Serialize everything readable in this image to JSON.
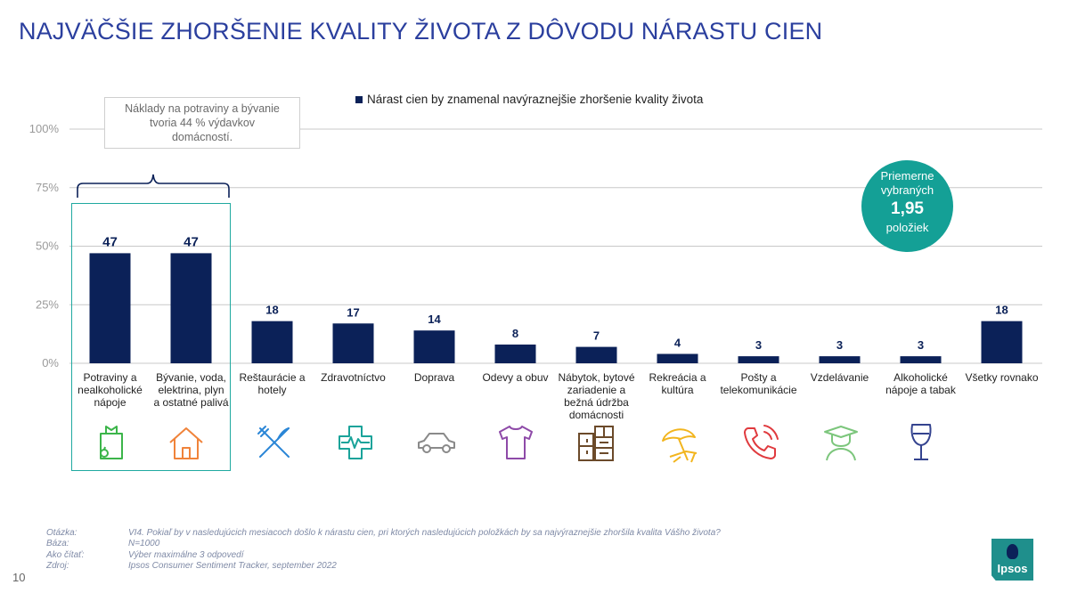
{
  "title": "NAJVÄČŠIE ZHORŠENIE KVALITY ŽIVOTA Z DÔVODU NÁRASTU CIEN",
  "callout": {
    "line1": "Náklady na potraviny a bývanie",
    "line2": "tvoria 44 % výdavkov",
    "line3": "domácností."
  },
  "avg_badge": {
    "line1": "Priemerne",
    "line2": "vybraných",
    "value": "1,95",
    "line3": "položiek"
  },
  "colors": {
    "bar": "#0b2158",
    "title": "#2b3f9e",
    "accent": "#14a096"
  },
  "icons": [
    "grocery-bag-icon",
    "house-icon",
    "fork-knife-icon",
    "medical-cross-icon",
    "car-icon",
    "tshirt-icon",
    "furniture-icon",
    "beach-umbrella-icon",
    "phone-icon",
    "graduate-icon",
    "wine-glass-icon"
  ],
  "chart_data": {
    "type": "bar",
    "title": "NAJVÄČŠIE ZHORŠENIE KVALITY ŽIVOTA Z DÔVODU NÁRASTU CIEN",
    "ylim": [
      0,
      100
    ],
    "yticks": [
      "0%",
      "25%",
      "50%",
      "75%",
      "100%"
    ],
    "yticks_values": [
      0,
      25,
      50,
      75,
      100
    ],
    "grid": true,
    "legend_position": "top",
    "categories": [
      [
        "Potraviny a",
        "nealkoholické",
        "nápoje"
      ],
      [
        "Bývanie, voda,",
        "elektrina, plyn",
        "a ostatné palivá"
      ],
      [
        "Reštaurácie a",
        "hotely"
      ],
      [
        "Zdravotníctvo"
      ],
      [
        "Doprava"
      ],
      [
        "Odevy a obuv"
      ],
      [
        "Nábytok, bytové",
        "zariadenie a",
        "bežná údržba",
        "domácnosti"
      ],
      [
        "Rekreácia a",
        "kultúra"
      ],
      [
        "Pošty a",
        "telekomunikácie"
      ],
      [
        "Vzdelávanie"
      ],
      [
        "Alkoholické",
        "nápoje a tabak"
      ],
      [
        "Všetky rovnako"
      ]
    ],
    "series": [
      {
        "name": "Nárast cien by znamenal navýraznejšie zhoršenie kvality života",
        "values": [
          47,
          47,
          18,
          17,
          14,
          8,
          7,
          4,
          3,
          3,
          3,
          18
        ]
      }
    ]
  },
  "footer": [
    {
      "label": "Otázka:",
      "text": "VI4. Pokiaľ by v nasledujúcich mesiacoch došlo k nárastu cien, pri ktorých nasledujúcich položkách by sa najvýraznejšie zhoršila kvalita Vášho života?"
    },
    {
      "label": "Báza:",
      "text": "N=1000"
    },
    {
      "label": "Ako čítať:",
      "text": "Výber maximálne 3 odpovedí"
    },
    {
      "label": "Zdroj:",
      "text": "Ipsos Consumer Sentiment Tracker, september 2022"
    }
  ],
  "page_number": "10",
  "logo_text": "Ipsos"
}
